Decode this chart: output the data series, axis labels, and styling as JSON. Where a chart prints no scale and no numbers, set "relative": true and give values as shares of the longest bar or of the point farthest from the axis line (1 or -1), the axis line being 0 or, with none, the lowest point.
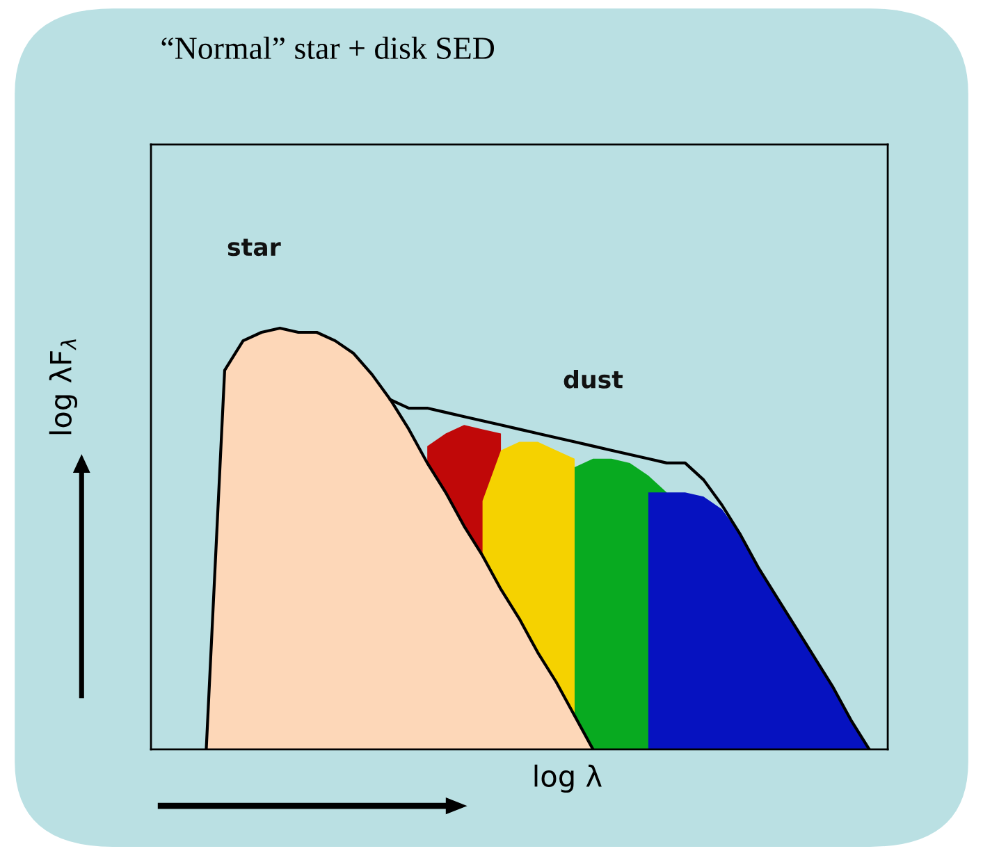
{
  "chart_data": {
    "type": "area",
    "relative": true,
    "title": "“Normal” star + disk SED",
    "xlabel": "log λ",
    "ylabel": "log λF$_{λ}$",
    "categories": [
      null,
      null,
      null,
      null,
      null,
      null,
      null,
      null,
      null,
      null,
      null,
      null,
      null,
      null,
      null,
      null,
      null,
      null,
      null,
      null,
      null,
      null,
      null,
      null,
      null,
      null,
      null,
      null,
      null,
      null,
      null,
      null,
      null,
      null,
      null,
      null,
      null,
      null,
      null,
      null,
      null
    ],
    "series": [
      {
        "color": "#c00808",
        "values": [
          null,
          null,
          null,
          null,
          null,
          null,
          null,
          null,
          null,
          null,
          null,
          null,
          null,
          null,
          null,
          0.72,
          0.75,
          0.77,
          0.76,
          0.75,
          null,
          null,
          null,
          null,
          null,
          null,
          null,
          null,
          null,
          null,
          null,
          null,
          null,
          null,
          null,
          null,
          null,
          null,
          null,
          null,
          null
        ]
      },
      {
        "color": "#f5d200",
        "values": [
          null,
          null,
          null,
          null,
          null,
          null,
          null,
          null,
          null,
          null,
          null,
          null,
          null,
          null,
          null,
          null,
          null,
          null,
          0.59,
          0.71,
          0.73,
          0.73,
          0.71,
          0.69,
          null,
          null,
          null,
          null,
          null,
          null,
          null,
          null,
          null,
          null,
          null,
          null,
          null,
          null,
          null,
          null,
          null
        ]
      },
      {
        "color": "#08aa20",
        "values": [
          null,
          null,
          null,
          null,
          null,
          null,
          null,
          null,
          null,
          null,
          null,
          null,
          null,
          null,
          null,
          null,
          null,
          null,
          null,
          null,
          null,
          null,
          null,
          0.67,
          0.69,
          0.69,
          0.68,
          0.65,
          0.61,
          null,
          null,
          null,
          null,
          null,
          null,
          null,
          null,
          null,
          null,
          null,
          null
        ]
      },
      {
        "color": "#0612c0",
        "values": [
          null,
          null,
          null,
          null,
          null,
          null,
          null,
          null,
          null,
          null,
          null,
          null,
          null,
          null,
          null,
          null,
          null,
          null,
          null,
          null,
          null,
          null,
          null,
          null,
          null,
          null,
          null,
          0.61,
          0.61,
          0.61,
          0.6,
          0.57,
          0.51,
          0.43,
          0.36,
          0.29,
          0.22,
          0.15,
          0.07,
          0,
          null
        ]
      },
      {
        "name": "star",
        "color": "#fdd7b8",
        "values": [
          null,
          null,
          null,
          0,
          0.9,
          0.97,
          0.99,
          1.0,
          0.99,
          0.99,
          0.97,
          0.94,
          0.89,
          0.83,
          0.76,
          0.68,
          0.61,
          0.53,
          0.46,
          0.38,
          0.31,
          0.23,
          0.16,
          0.08,
          0,
          null,
          null,
          null,
          null,
          null,
          null,
          null,
          null,
          null,
          null,
          null,
          null,
          null,
          null,
          null,
          null
        ]
      },
      {
        "type": "line",
        "name": "dust",
        "color": "#000000",
        "values": [
          null,
          null,
          null,
          null,
          null,
          null,
          null,
          null,
          null,
          null,
          null,
          null,
          null,
          0.83,
          0.81,
          0.81,
          0.8,
          0.79,
          0.78,
          0.77,
          0.76,
          0.75,
          0.74,
          0.73,
          0.72,
          0.71,
          0.7,
          0.69,
          0.68,
          0.68,
          0.64,
          0.58,
          0.51,
          0.43,
          0.36,
          0.29,
          0.22,
          0.15,
          0.07,
          0,
          null
        ]
      }
    ]
  }
}
